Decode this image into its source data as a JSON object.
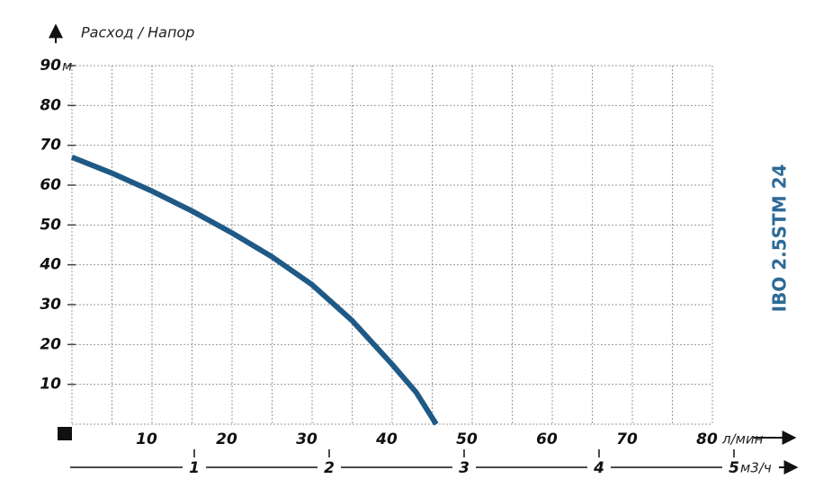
{
  "chart_data": {
    "type": "line",
    "title": "IBO 2.5STM 24",
    "axis_label": "Расход / Напор",
    "y_unit": "м",
    "x_unit": "л/мин",
    "x2_unit": "м3/ч",
    "xlim": [
      0,
      80
    ],
    "xticks": [
      10,
      20,
      30,
      40,
      50,
      60,
      70,
      80
    ],
    "x2lim": [
      0,
      5
    ],
    "x2ticks": [
      1,
      2,
      3,
      4,
      5
    ],
    "ylim": [
      0,
      90
    ],
    "yticks": [
      10,
      20,
      30,
      40,
      50,
      60,
      70,
      80,
      90
    ],
    "grid": true,
    "x": [
      0,
      5,
      10,
      15,
      20,
      25,
      30,
      35,
      40,
      43,
      45.5
    ],
    "series": [
      {
        "color": "#1f5a86",
        "values": [
          67,
          63,
          58.5,
          53.5,
          48,
          42,
          35,
          26,
          15,
          8,
          0
        ]
      }
    ]
  }
}
